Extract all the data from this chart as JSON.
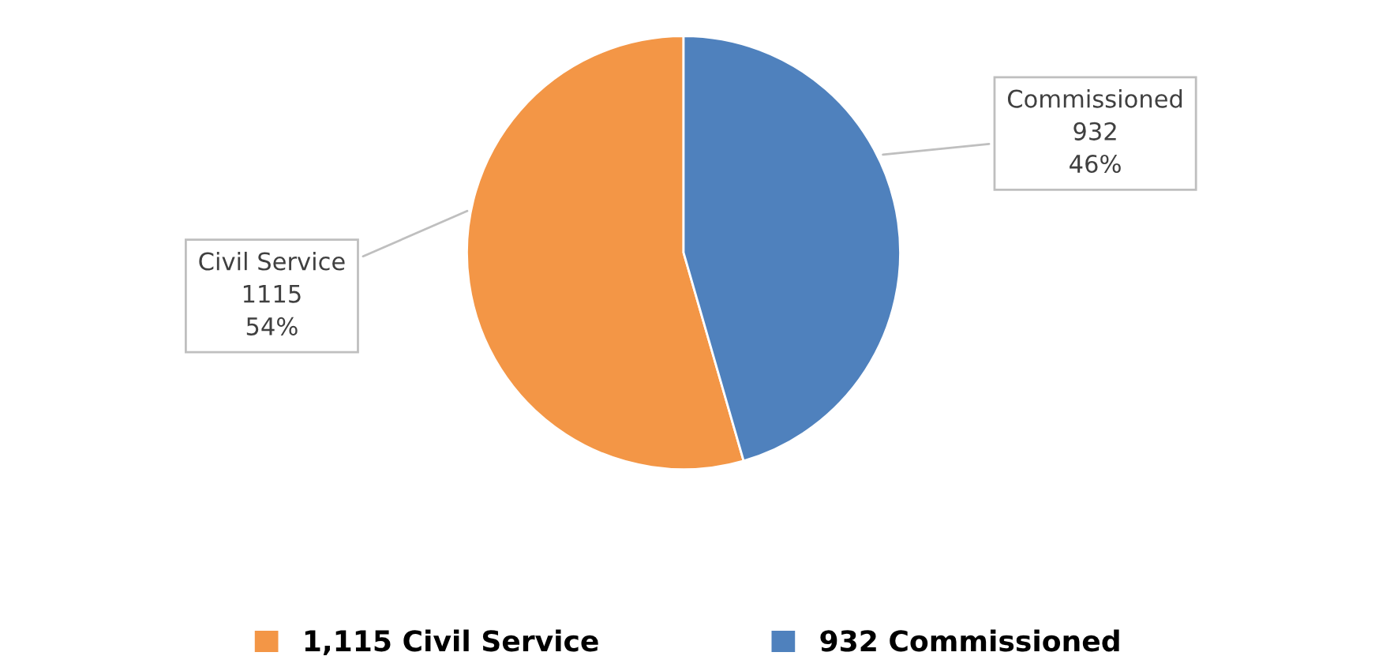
{
  "chart_data": {
    "type": "pie",
    "categories": [
      "1,115 Civil Service",
      "932 Commissioned"
    ],
    "values": [
      1115,
      932
    ],
    "colors": [
      "#f39646",
      "#4f81bd"
    ],
    "value_labels": [
      "Civil Service\n1115\n54%",
      "Commissioned\n932\n46%"
    ],
    "legend": "bottom"
  }
}
